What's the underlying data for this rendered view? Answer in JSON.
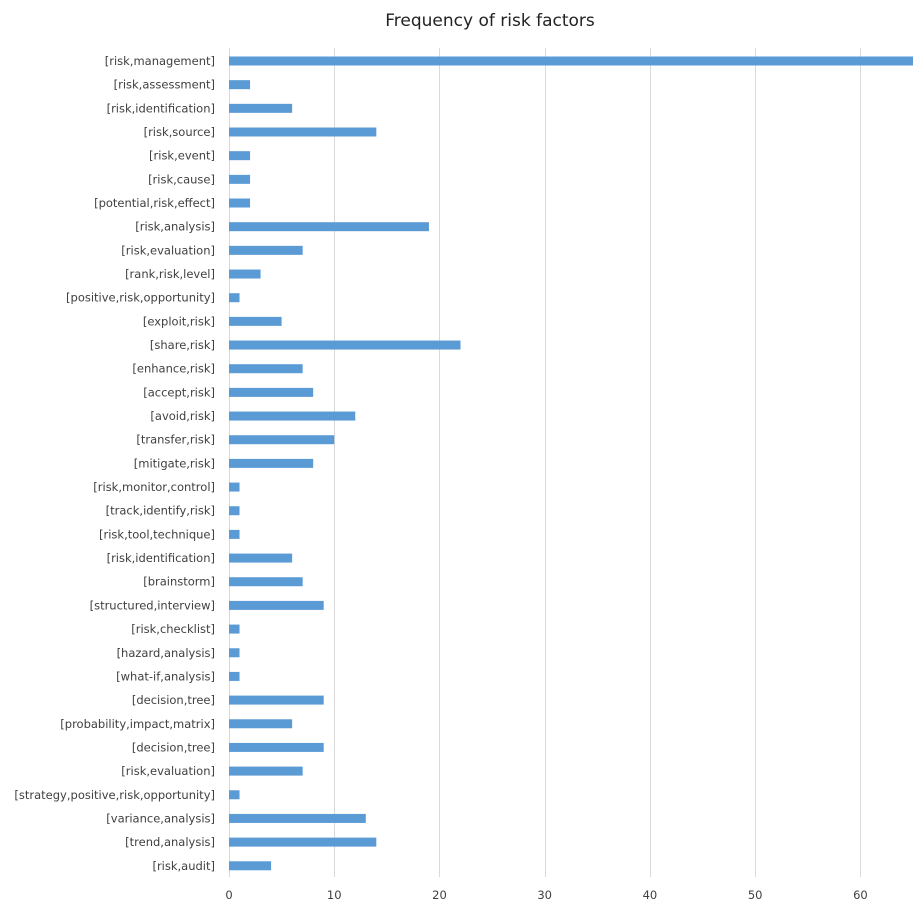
{
  "chart_data": {
    "type": "bar",
    "orientation": "horizontal",
    "title": "Frequency of risk factors",
    "xlabel": "",
    "ylabel": "",
    "xlim": [
      0,
      65
    ],
    "xticks": [
      0,
      10,
      20,
      30,
      40,
      50,
      60
    ],
    "grid": true,
    "legend": "none",
    "bar_color": "#5b9bd5",
    "categories": [
      "[risk,management]",
      "[risk,assessment]",
      "[risk,identification]",
      "[risk,source]",
      "[risk,event]",
      "[risk,cause]",
      "[potential,risk,effect]",
      "[risk,analysis]",
      "[risk,evaluation]",
      "[rank,risk,level]",
      "[positive,risk,opportunity]",
      "[exploit,risk]",
      "[share,risk]",
      "[enhance,risk]",
      "[accept,risk]",
      "[avoid,risk]",
      "[transfer,risk]",
      "[mitigate,risk]",
      "[risk,monitor,control]",
      "[track,identify,risk]",
      "[risk,tool,technique]",
      "[risk,identification]",
      "[brainstorm]",
      "[structured,interview]",
      "[risk,checklist]",
      "[hazard,analysis]",
      "[what-if,analysis]",
      "[decision,tree]",
      "[probability,impact,matrix]",
      "[decision,tree]",
      "[risk,evaluation]",
      "[strategy,positive,risk,opportunity]",
      "[variance,analysis]",
      "[trend,analysis]",
      "[risk,audit]"
    ],
    "values": [
      66,
      2,
      6,
      14,
      2,
      2,
      2,
      19,
      7,
      3,
      1,
      5,
      22,
      7,
      8,
      12,
      10,
      8,
      1,
      1,
      1,
      6,
      7,
      9,
      1,
      1,
      1,
      9,
      6,
      9,
      7,
      1,
      13,
      14,
      4
    ]
  }
}
